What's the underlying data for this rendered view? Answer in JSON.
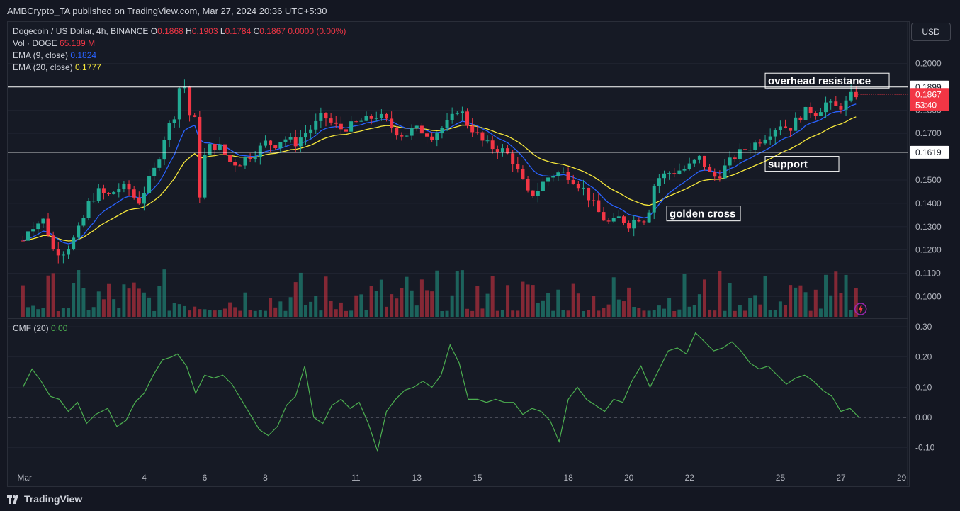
{
  "publish_line": "AMBCrypto_TA published on TradingView.com, Mar 27, 2024 20:36 UTC+5:30",
  "legend": {
    "symbol": "Dogecoin / US Dollar, 4h, BINANCE",
    "o_label": "O",
    "o": "0.1868",
    "h_label": "H",
    "h": "0.1903",
    "l_label": "L",
    "l": "0.1784",
    "c_label": "C",
    "c": "0.1867",
    "change": "0.0000 (0.00%)",
    "vol_label": "Vol · DOGE",
    "vol": "65.189 M",
    "ema9_label": "EMA (9, close)",
    "ema9": "0.1824",
    "ema20_label": "EMA (20, close)",
    "ema20": "0.1777"
  },
  "currency_button": "USD",
  "cmf_legend": {
    "label": "CMF (20)",
    "value": "0.00"
  },
  "brand": "TradingView",
  "colors": {
    "up": "#22ab94",
    "down": "#f23645",
    "ema9": "#2962ff",
    "ema20": "#f7e83b",
    "cmf": "#4caf50",
    "grid": "#1f2330"
  },
  "chart_data": [
    {
      "type": "candlestick",
      "title": "Dogecoin / US Dollar, 4h, BINANCE",
      "ylim": [
        0.095,
        0.21
      ],
      "y_ticks": [
        "0.1000",
        "0.1100",
        "0.1200",
        "0.1300",
        "0.1400",
        "0.1500",
        "0.1700",
        "0.1800",
        "0.2000"
      ],
      "x_ticks": [
        "Mar",
        "4",
        "6",
        "8",
        "11",
        "13",
        "15",
        "18",
        "20",
        "22",
        "25",
        "27",
        "29"
      ],
      "price_tags": [
        {
          "label": "0.1899",
          "value": 0.1899,
          "style": "white"
        },
        {
          "label": "0.1867",
          "value": 0.1867,
          "style": "red",
          "countdown": "53:40"
        },
        {
          "label": "0.1619",
          "value": 0.1619,
          "style": "white"
        }
      ],
      "horizontal_lines": [
        0.1899,
        0.1619
      ],
      "annotations": [
        {
          "text": "overhead resistance",
          "x_day": 24.5,
          "y": 0.1922
        },
        {
          "text": "support",
          "x_day": 24.5,
          "y": 0.1565
        },
        {
          "text": "golden cross",
          "x_day": 21.25,
          "y": 0.1352
        }
      ],
      "path_points": [
        [
          0,
          0.124
        ],
        [
          0.2,
          0.13
        ],
        [
          0.4,
          0.131
        ],
        [
          0.7,
          0.133
        ],
        [
          1,
          0.12
        ],
        [
          1.3,
          0.119
        ],
        [
          1.6,
          0.123
        ],
        [
          1.9,
          0.13
        ],
        [
          2.2,
          0.141
        ],
        [
          2.5,
          0.145
        ],
        [
          2.8,
          0.143
        ],
        [
          3.2,
          0.147
        ],
        [
          3.5,
          0.146
        ],
        [
          3.8,
          0.14
        ],
        [
          4.1,
          0.148
        ],
        [
          4.4,
          0.156
        ],
        [
          4.7,
          0.17
        ],
        [
          5.0,
          0.178
        ],
        [
          5.2,
          0.192
        ],
        [
          5.35,
          0.19
        ],
        [
          5.5,
          0.178
        ],
        [
          5.7,
          0.175
        ],
        [
          5.85,
          0.14
        ],
        [
          6.0,
          0.16
        ],
        [
          6.2,
          0.165
        ],
        [
          6.5,
          0.164
        ],
        [
          6.8,
          0.158
        ],
        [
          7.1,
          0.157
        ],
        [
          7.4,
          0.16
        ],
        [
          7.7,
          0.162
        ],
        [
          8.0,
          0.166
        ],
        [
          8.3,
          0.165
        ],
        [
          8.6,
          0.168
        ],
        [
          9.0,
          0.166
        ],
        [
          9.3,
          0.17
        ],
        [
          9.6,
          0.173
        ],
        [
          9.9,
          0.178
        ],
        [
          10.2,
          0.174
        ],
        [
          10.5,
          0.172
        ],
        [
          10.8,
          0.173
        ],
        [
          11.1,
          0.175
        ],
        [
          11.4,
          0.176
        ],
        [
          11.7,
          0.178
        ],
        [
          12.0,
          0.175
        ],
        [
          12.3,
          0.171
        ],
        [
          12.6,
          0.169
        ],
        [
          12.9,
          0.172
        ],
        [
          13.2,
          0.171
        ],
        [
          13.5,
          0.169
        ],
        [
          13.8,
          0.172
        ],
        [
          14.1,
          0.175
        ],
        [
          14.4,
          0.182
        ],
        [
          14.6,
          0.175
        ],
        [
          14.9,
          0.171
        ],
        [
          15.2,
          0.166
        ],
        [
          15.5,
          0.164
        ],
        [
          15.8,
          0.163
        ],
        [
          16.1,
          0.16
        ],
        [
          16.4,
          0.152
        ],
        [
          16.7,
          0.143
        ],
        [
          17.0,
          0.146
        ],
        [
          17.3,
          0.151
        ],
        [
          17.6,
          0.153
        ],
        [
          17.9,
          0.153
        ],
        [
          18.2,
          0.15
        ],
        [
          18.5,
          0.146
        ],
        [
          18.8,
          0.14
        ],
        [
          19.1,
          0.134
        ],
        [
          19.4,
          0.131
        ],
        [
          19.7,
          0.134
        ],
        [
          20.0,
          0.131
        ],
        [
          20.3,
          0.134
        ],
        [
          20.6,
          0.133
        ],
        [
          20.8,
          0.147
        ],
        [
          21.0,
          0.151
        ],
        [
          21.3,
          0.153
        ],
        [
          21.6,
          0.154
        ],
        [
          21.9,
          0.155
        ],
        [
          22.1,
          0.157
        ],
        [
          22.4,
          0.16
        ],
        [
          22.6,
          0.153
        ],
        [
          22.9,
          0.151
        ],
        [
          23.2,
          0.156
        ],
        [
          23.5,
          0.16
        ],
        [
          23.8,
          0.163
        ],
        [
          24.1,
          0.165
        ],
        [
          24.4,
          0.168
        ],
        [
          24.7,
          0.171
        ],
        [
          25.0,
          0.174
        ],
        [
          25.3,
          0.172
        ],
        [
          25.6,
          0.177
        ],
        [
          25.9,
          0.18
        ],
        [
          26.2,
          0.179
        ],
        [
          26.5,
          0.183
        ],
        [
          26.8,
          0.181
        ],
        [
          27.1,
          0.182
        ],
        [
          27.4,
          0.187
        ],
        [
          27.6,
          0.1867
        ]
      ]
    },
    {
      "type": "line",
      "title": "CMF (20)",
      "ylim": [
        -0.14,
        0.31
      ],
      "y_ticks": [
        "0.30",
        "0.20",
        "0.10",
        "0.00",
        "-0.10"
      ],
      "series": [
        {
          "values": [
            [
              0,
              0.1
            ],
            [
              0.3,
              0.16
            ],
            [
              0.6,
              0.12
            ],
            [
              0.9,
              0.07
            ],
            [
              1.2,
              0.06
            ],
            [
              1.5,
              0.02
            ],
            [
              1.8,
              0.05
            ],
            [
              2.1,
              -0.02
            ],
            [
              2.4,
              0.01
            ],
            [
              2.8,
              0.03
            ],
            [
              3.1,
              -0.03
            ],
            [
              3.4,
              -0.01
            ],
            [
              3.7,
              0.05
            ],
            [
              4.0,
              0.08
            ],
            [
              4.3,
              0.14
            ],
            [
              4.6,
              0.19
            ],
            [
              4.9,
              0.2
            ],
            [
              5.1,
              0.21
            ],
            [
              5.4,
              0.17
            ],
            [
              5.7,
              0.08
            ],
            [
              6.0,
              0.14
            ],
            [
              6.3,
              0.13
            ],
            [
              6.6,
              0.14
            ],
            [
              6.9,
              0.11
            ],
            [
              7.2,
              0.06
            ],
            [
              7.5,
              0.01
            ],
            [
              7.8,
              -0.04
            ],
            [
              8.1,
              -0.06
            ],
            [
              8.4,
              -0.03
            ],
            [
              8.7,
              0.04
            ],
            [
              9.0,
              0.07
            ],
            [
              9.3,
              0.17
            ],
            [
              9.6,
              0.0
            ],
            [
              9.9,
              -0.02
            ],
            [
              10.2,
              0.04
            ],
            [
              10.5,
              0.06
            ],
            [
              10.8,
              0.03
            ],
            [
              11.1,
              0.05
            ],
            [
              11.4,
              -0.02
            ],
            [
              11.7,
              -0.11
            ],
            [
              12.0,
              0.02
            ],
            [
              12.3,
              0.06
            ],
            [
              12.6,
              0.09
            ],
            [
              12.9,
              0.1
            ],
            [
              13.2,
              0.12
            ],
            [
              13.5,
              0.1
            ],
            [
              13.8,
              0.14
            ],
            [
              14.1,
              0.24
            ],
            [
              14.4,
              0.18
            ],
            [
              14.7,
              0.06
            ],
            [
              15.0,
              0.06
            ],
            [
              15.3,
              0.05
            ],
            [
              15.6,
              0.06
            ],
            [
              15.9,
              0.05
            ],
            [
              16.2,
              0.05
            ],
            [
              16.5,
              0.01
            ],
            [
              16.8,
              0.03
            ],
            [
              17.1,
              0.02
            ],
            [
              17.4,
              -0.01
            ],
            [
              17.7,
              -0.08
            ],
            [
              18.0,
              0.06
            ],
            [
              18.3,
              0.1
            ],
            [
              18.6,
              0.06
            ],
            [
              18.9,
              0.04
            ],
            [
              19.2,
              0.02
            ],
            [
              19.5,
              0.06
            ],
            [
              19.8,
              0.05
            ],
            [
              20.1,
              0.12
            ],
            [
              20.4,
              0.17
            ],
            [
              20.7,
              0.1
            ],
            [
              21.0,
              0.16
            ],
            [
              21.3,
              0.22
            ],
            [
              21.6,
              0.23
            ],
            [
              21.9,
              0.21
            ],
            [
              22.2,
              0.28
            ],
            [
              22.5,
              0.25
            ],
            [
              22.8,
              0.22
            ],
            [
              23.1,
              0.23
            ],
            [
              23.4,
              0.25
            ],
            [
              23.7,
              0.22
            ],
            [
              24.0,
              0.18
            ],
            [
              24.3,
              0.16
            ],
            [
              24.6,
              0.17
            ],
            [
              24.9,
              0.14
            ],
            [
              25.2,
              0.11
            ],
            [
              25.5,
              0.13
            ],
            [
              25.8,
              0.14
            ],
            [
              26.1,
              0.12
            ],
            [
              26.4,
              0.09
            ],
            [
              26.7,
              0.07
            ],
            [
              27.0,
              0.02
            ],
            [
              27.3,
              0.03
            ],
            [
              27.6,
              0.0
            ]
          ]
        }
      ]
    }
  ]
}
